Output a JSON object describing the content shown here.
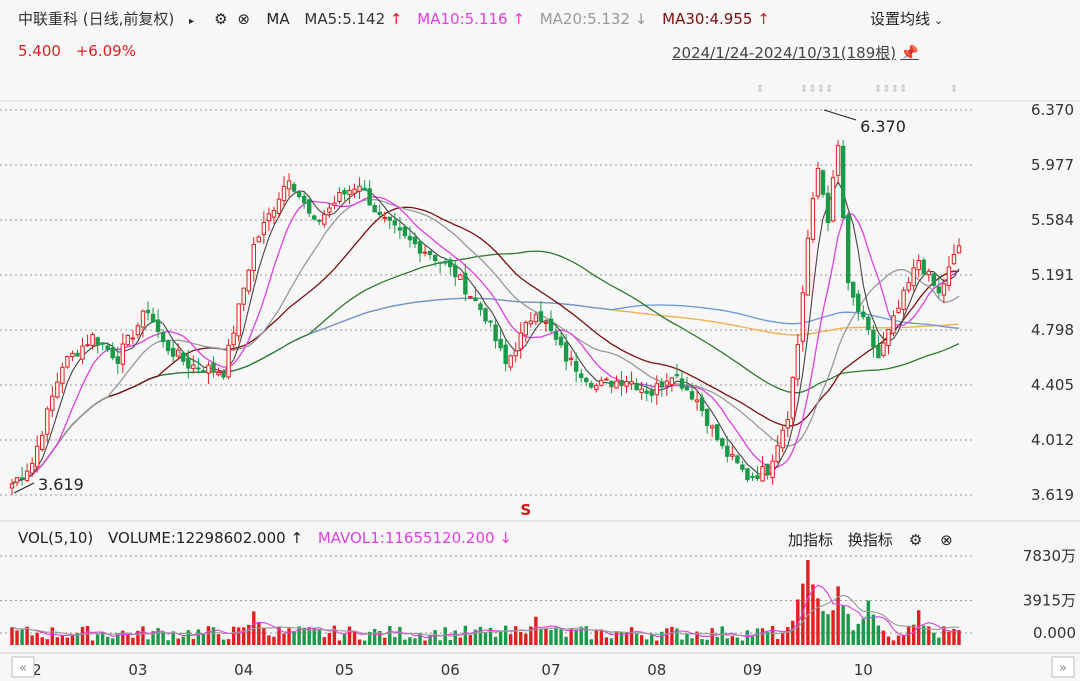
{
  "header": {
    "title": "中联重科 (日线,前复权)",
    "ma_label": "MA",
    "ma5": "MA5:5.142",
    "ma10": "MA10:5.116",
    "ma20": "MA20:5.132",
    "ma30": "MA30:4.955",
    "arrow_up": "↑",
    "arrow_down": "↓",
    "settings_label": "设置均线",
    "price": "5.400",
    "change": "+6.09%",
    "range": "2024/1/24-2024/10/31(189根)"
  },
  "volume_header": {
    "vol_label": "VOL(5,10)",
    "volume": "VOLUME:12298602.000",
    "mavol1": "MAVOL1:11655120.200",
    "add_indicator": "加指标",
    "switch_indicator": "换指标"
  },
  "colors": {
    "up": "#e02020",
    "down": "#1a9a48",
    "ma5": "#444444",
    "ma10": "#e040e0",
    "ma20": "#999999",
    "ma30": "#7a1010",
    "ma60": "#2f7a2f",
    "ma120": "#6a96d8",
    "ma250": "#f0b050"
  },
  "chart_data": {
    "type": "candlestick",
    "price_axis": {
      "ticks": [
        "6.370",
        "5.977",
        "5.584",
        "5.191",
        "4.798",
        "4.405",
        "4.012",
        "3.619"
      ],
      "ylim": [
        3.619,
        6.37
      ]
    },
    "volume_axis": {
      "ticks": [
        "7830万",
        "3915万",
        "0.000"
      ],
      "ylim": [
        0,
        7830
      ]
    },
    "x_ticks": [
      "02",
      "03",
      "04",
      "05",
      "06",
      "07",
      "08",
      "09",
      "10"
    ],
    "annotations": {
      "high": "6.370",
      "low": "3.619",
      "signal": "S"
    },
    "last_close": 5.4,
    "ma_last": {
      "MA5": 5.142,
      "MA10": 5.116,
      "MA20": 5.132,
      "MA30": 4.955
    },
    "waypoints": [
      {
        "t": 0,
        "v": 3.7
      },
      {
        "t": 4,
        "v": 3.85
      },
      {
        "t": 10,
        "v": 4.55
      },
      {
        "t": 16,
        "v": 4.75
      },
      {
        "t": 21,
        "v": 4.6
      },
      {
        "t": 27,
        "v": 4.95
      },
      {
        "t": 30,
        "v": 4.7
      },
      {
        "t": 35,
        "v": 4.55
      },
      {
        "t": 42,
        "v": 4.5
      },
      {
        "t": 48,
        "v": 5.4
      },
      {
        "t": 55,
        "v": 5.9
      },
      {
        "t": 60,
        "v": 5.55
      },
      {
        "t": 65,
        "v": 5.75
      },
      {
        "t": 69,
        "v": 5.85
      },
      {
        "t": 73,
        "v": 5.6
      },
      {
        "t": 78,
        "v": 5.45
      },
      {
        "t": 83,
        "v": 5.35
      },
      {
        "t": 88,
        "v": 5.2
      },
      {
        "t": 94,
        "v": 4.9
      },
      {
        "t": 98,
        "v": 4.55
      },
      {
        "t": 104,
        "v": 4.95
      },
      {
        "t": 110,
        "v": 4.6
      },
      {
        "t": 116,
        "v": 4.4
      },
      {
        "t": 122,
        "v": 4.45
      },
      {
        "t": 127,
        "v": 4.35
      },
      {
        "t": 131,
        "v": 4.5
      },
      {
        "t": 136,
        "v": 4.3
      },
      {
        "t": 141,
        "v": 3.95
      },
      {
        "t": 146,
        "v": 3.75
      },
      {
        "t": 150,
        "v": 3.8
      },
      {
        "t": 154,
        "v": 4.2
      },
      {
        "t": 156,
        "v": 4.7
      },
      {
        "t": 158,
        "v": 5.45
      },
      {
        "t": 160,
        "v": 5.95
      },
      {
        "t": 162,
        "v": 5.6
      },
      {
        "t": 164,
        "v": 6.1
      },
      {
        "t": 166,
        "v": 5.1
      },
      {
        "t": 169,
        "v": 4.85
      },
      {
        "t": 172,
        "v": 4.6
      },
      {
        "t": 176,
        "v": 4.95
      },
      {
        "t": 180,
        "v": 5.3
      },
      {
        "t": 184,
        "v": 5.05
      },
      {
        "t": 188,
        "v": 5.4
      }
    ],
    "count": 189,
    "vol_spikes": [
      {
        "t": 48,
        "v": 3100
      },
      {
        "t": 104,
        "v": 2600
      },
      {
        "t": 158,
        "v": 7830
      },
      {
        "t": 160,
        "v": 4300
      },
      {
        "t": 164,
        "v": 5400
      },
      {
        "t": 170,
        "v": 4100
      },
      {
        "t": 180,
        "v": 3200
      }
    ]
  }
}
